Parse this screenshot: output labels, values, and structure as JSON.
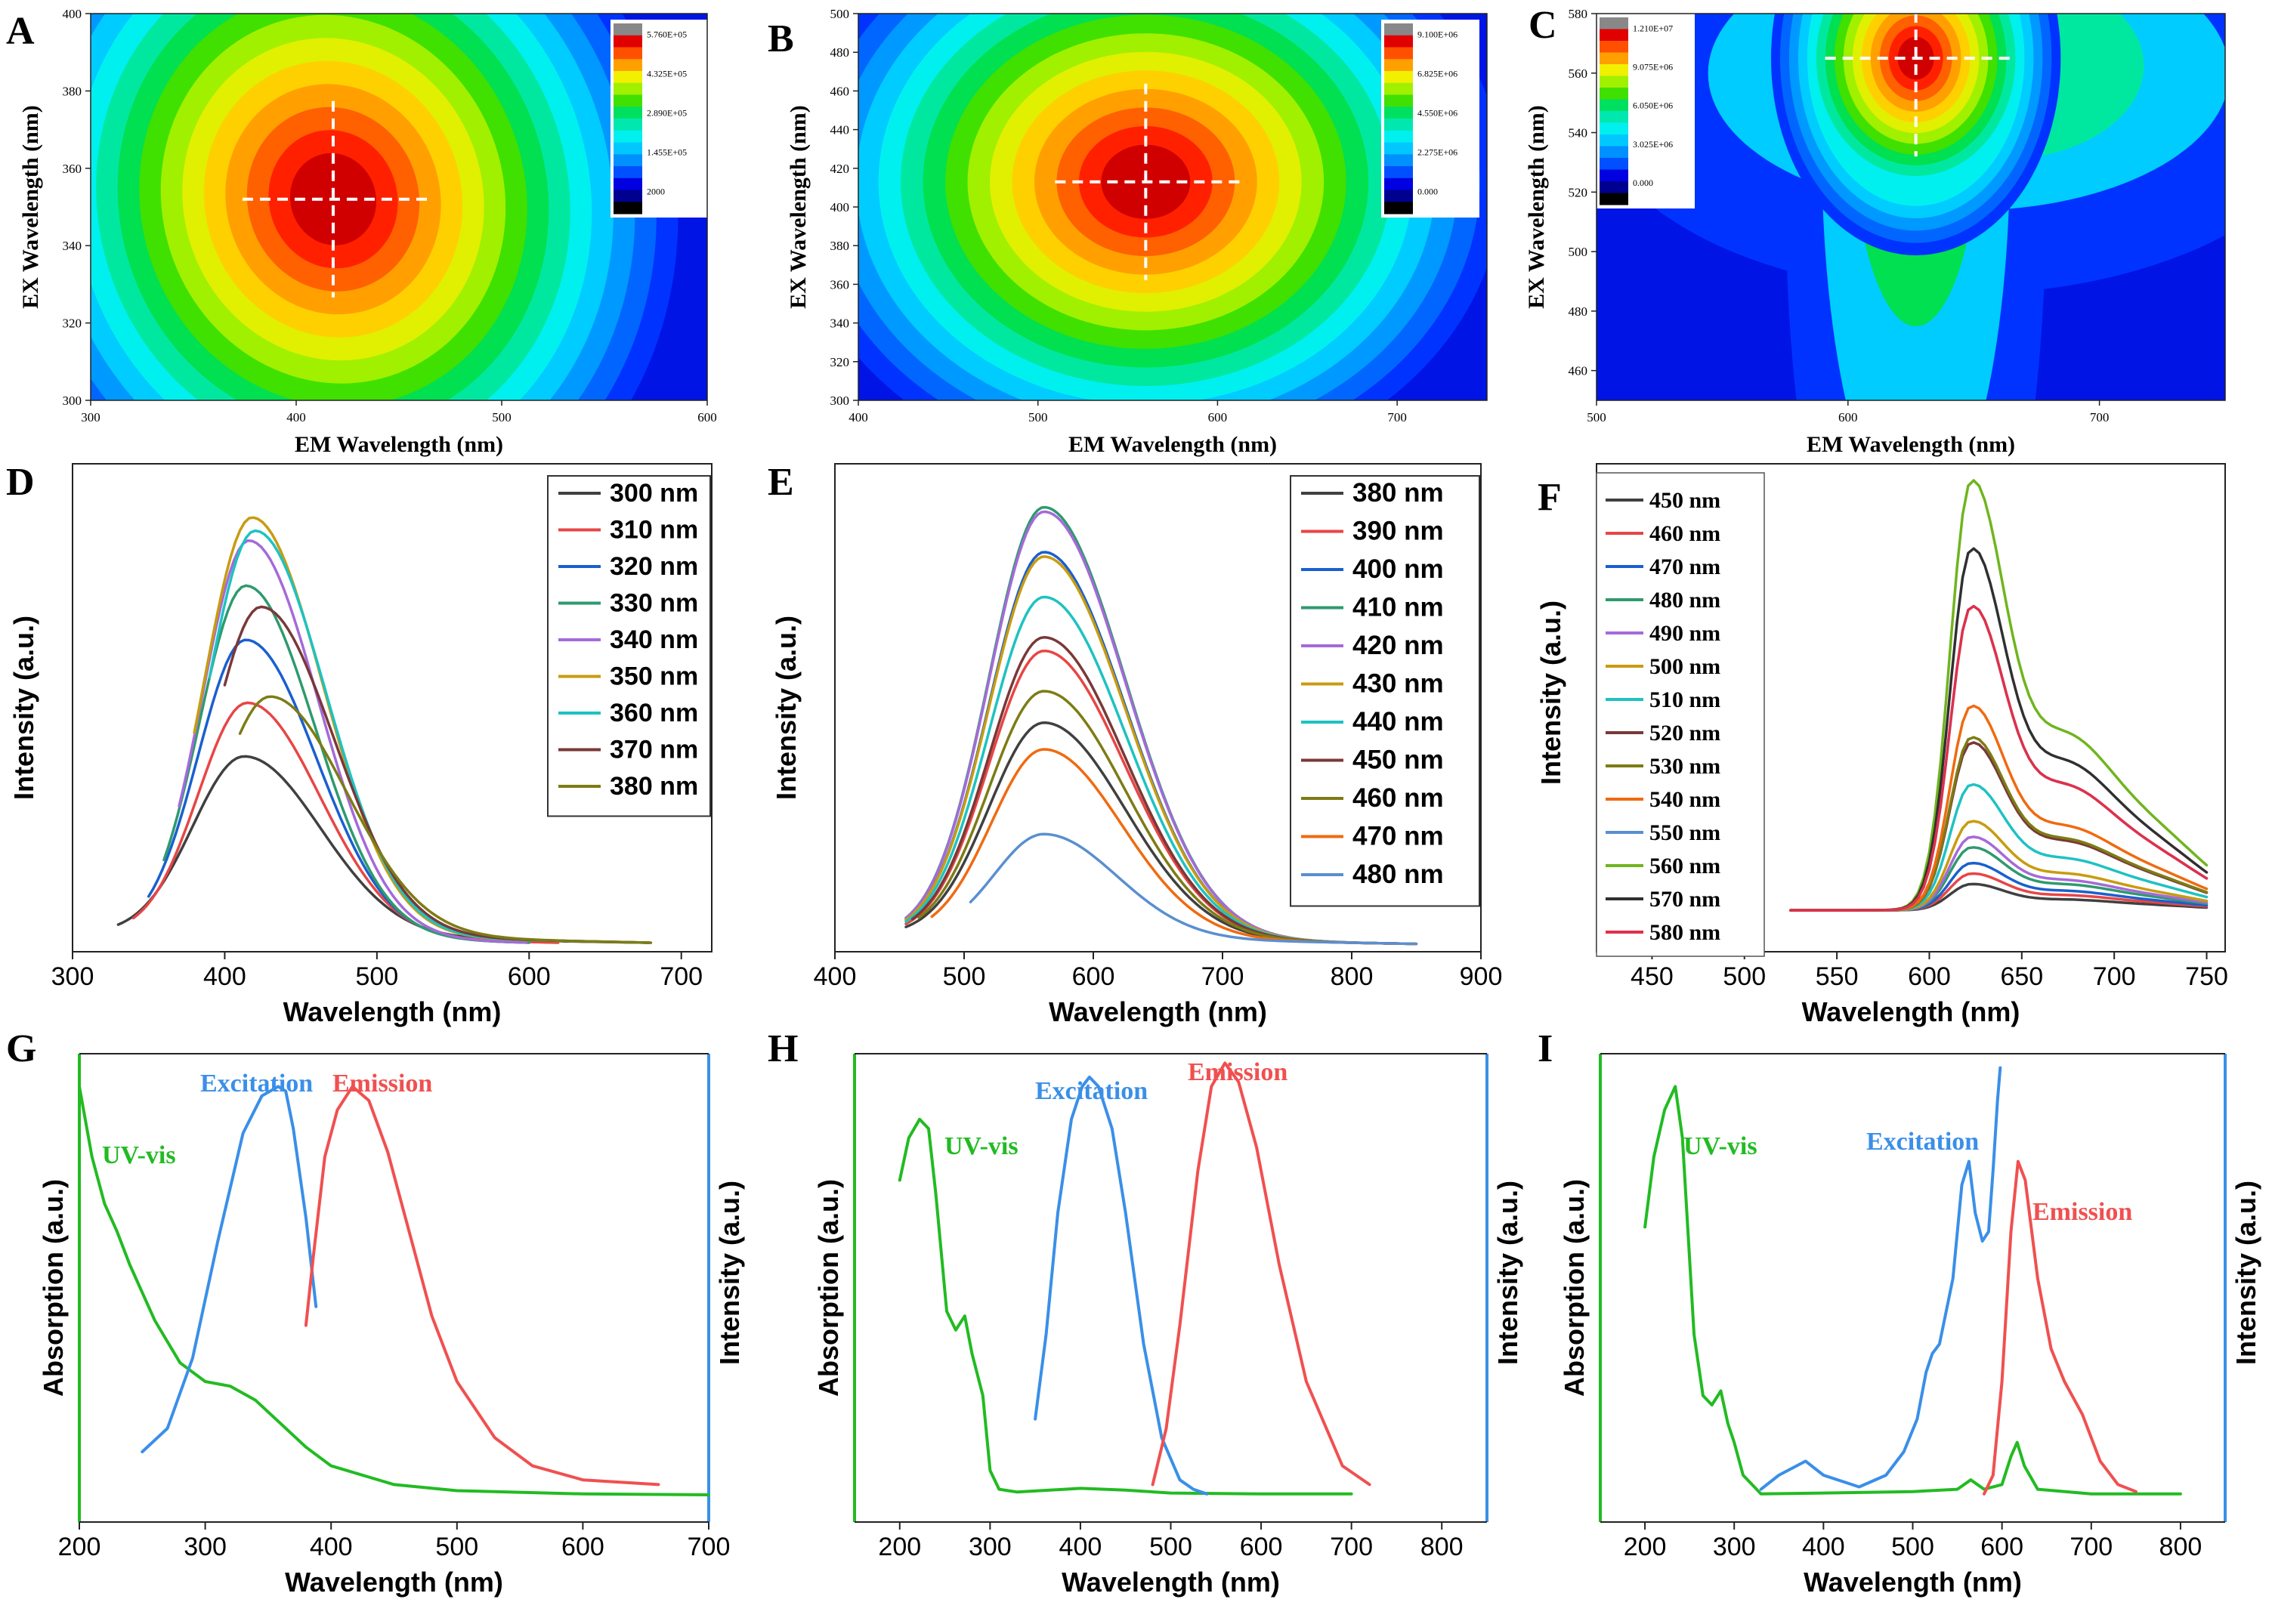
{
  "figure": {
    "panel_labels": [
      "A",
      "B",
      "C",
      "D",
      "E",
      "F",
      "G",
      "H",
      "I"
    ]
  },
  "chart_data": [
    {
      "panel": "A",
      "type": "heatmap",
      "xlabel": "EM Wavelength (nm)",
      "ylabel": "EX Wavelength (nm)",
      "xlim": [
        300,
        600
      ],
      "ylim": [
        300,
        400
      ],
      "xticks": [
        "300",
        "400",
        "500",
        "600"
      ],
      "yticks": [
        "300",
        "320",
        "340",
        "360",
        "380",
        "400"
      ],
      "peak": {
        "em": 418,
        "ex": 352
      },
      "spread": {
        "em": 52,
        "ex": 30
      },
      "colorbar": {
        "labels": [
          "5.760E+05",
          "4.325E+05",
          "2.890E+05",
          "1.455E+05",
          "2000"
        ]
      }
    },
    {
      "panel": "B",
      "type": "heatmap",
      "xlabel": "EM Wavelength (nm)",
      "ylabel": "EX Wavelength (nm)",
      "xlim": [
        400,
        750
      ],
      "ylim": [
        300,
        500
      ],
      "xticks": [
        "400",
        "500",
        "600",
        "700"
      ],
      "yticks": [
        "300",
        "320",
        "340",
        "360",
        "380",
        "400",
        "420",
        "440",
        "460",
        "480",
        "500"
      ],
      "peak": {
        "em": 560,
        "ex": 413
      },
      "spread": {
        "em": 62,
        "ex": 48
      },
      "colorbar": {
        "labels": [
          "9.100E+06",
          "6.825E+06",
          "4.550E+06",
          "2.275E+06",
          "0.000"
        ]
      }
    },
    {
      "panel": "C",
      "type": "heatmap",
      "xlabel": "EM Wavelength (nm)",
      "ylabel": "EX Wavelength (nm)",
      "xlim": [
        500,
        750
      ],
      "ylim": [
        450,
        580
      ],
      "xticks": [
        "500",
        "600",
        "700"
      ],
      "yticks": [
        "460",
        "480",
        "500",
        "520",
        "540",
        "560",
        "580"
      ],
      "peak": {
        "em": 627,
        "ex": 565
      },
      "spread": {
        "em": 18,
        "ex": 18
      },
      "colorbar": {
        "labels": [
          "1.210E+07",
          "9.075E+06",
          "6.050E+06",
          "3.025E+06",
          "0.000"
        ]
      }
    },
    {
      "panel": "D",
      "type": "line",
      "xlabel": "Wavelength (nm)",
      "ylabel": "Intensity (a.u.)",
      "xlim": [
        300,
        720
      ],
      "ylim": [
        0,
        1.0
      ],
      "xticks": [
        "300",
        "400",
        "500",
        "600",
        "700"
      ],
      "series": [
        {
          "name": "300 nm",
          "color": "#404040",
          "start": 330,
          "end": 680,
          "peak": 413,
          "amp": 0.4,
          "width": 40
        },
        {
          "name": "310 nm",
          "color": "#e84545",
          "start": 340,
          "end": 620,
          "peak": 415,
          "amp": 0.52,
          "width": 38
        },
        {
          "name": "320 nm",
          "color": "#1a5fd0",
          "start": 350,
          "end": 600,
          "peak": 414,
          "amp": 0.66,
          "width": 37
        },
        {
          "name": "330 nm",
          "color": "#2e9a6e",
          "start": 360,
          "end": 600,
          "peak": 414,
          "amp": 0.78,
          "width": 36
        },
        {
          "name": "340 nm",
          "color": "#a56ad8",
          "start": 370,
          "end": 600,
          "peak": 416,
          "amp": 0.88,
          "width": 36
        },
        {
          "name": "350 nm",
          "color": "#c89c10",
          "start": 380,
          "end": 680,
          "peak": 418,
          "amp": 0.93,
          "width": 37
        },
        {
          "name": "360 nm",
          "color": "#1ec2c2",
          "start": 390,
          "end": 680,
          "peak": 420,
          "amp": 0.9,
          "width": 37
        },
        {
          "name": "370 nm",
          "color": "#7a3838",
          "start": 400,
          "end": 680,
          "peak": 424,
          "amp": 0.73,
          "width": 38
        },
        {
          "name": "380 nm",
          "color": "#7c7c15",
          "start": 410,
          "end": 680,
          "peak": 430,
          "amp": 0.53,
          "width": 40
        }
      ]
    },
    {
      "panel": "E",
      "type": "line",
      "xlabel": "Wavelength (nm)",
      "ylabel": "Intensity (a.u.)",
      "xlim": [
        400,
        900
      ],
      "ylim": [
        0,
        1.0
      ],
      "xticks": [
        "400",
        "500",
        "600",
        "700",
        "800",
        "900"
      ],
      "series": [
        {
          "name": "380 nm",
          "color": "#404040",
          "start": 455,
          "end": 850,
          "peak": 562,
          "amp": 0.48,
          "width": 50
        },
        {
          "name": "390 nm",
          "color": "#e84545",
          "start": 455,
          "end": 850,
          "peak": 562,
          "amp": 0.64,
          "width": 50
        },
        {
          "name": "400 nm",
          "color": "#1a5fd0",
          "start": 455,
          "end": 850,
          "peak": 562,
          "amp": 0.86,
          "width": 50
        },
        {
          "name": "410 nm",
          "color": "#2e9a6e",
          "start": 455,
          "end": 850,
          "peak": 562,
          "amp": 0.96,
          "width": 50
        },
        {
          "name": "420 nm",
          "color": "#a56ad8",
          "start": 455,
          "end": 850,
          "peak": 562,
          "amp": 0.95,
          "width": 50
        },
        {
          "name": "430 nm",
          "color": "#c89c10",
          "start": 455,
          "end": 850,
          "peak": 562,
          "amp": 0.85,
          "width": 50
        },
        {
          "name": "440 nm",
          "color": "#1ec2c2",
          "start": 455,
          "end": 850,
          "peak": 562,
          "amp": 0.76,
          "width": 50
        },
        {
          "name": "450 nm",
          "color": "#7a3838",
          "start": 460,
          "end": 850,
          "peak": 562,
          "amp": 0.67,
          "width": 50
        },
        {
          "name": "460 nm",
          "color": "#7c7c15",
          "start": 465,
          "end": 850,
          "peak": 562,
          "amp": 0.55,
          "width": 50
        },
        {
          "name": "470 nm",
          "color": "#f06a10",
          "start": 475,
          "end": 850,
          "peak": 562,
          "amp": 0.42,
          "width": 48
        },
        {
          "name": "480 nm",
          "color": "#5a8fd0",
          "start": 505,
          "end": 850,
          "peak": 562,
          "amp": 0.23,
          "width": 45
        }
      ]
    },
    {
      "panel": "F",
      "type": "line",
      "xlabel": "Wavelength (nm)",
      "ylabel": "Intensity (a.u.)",
      "xlim": [
        420,
        760
      ],
      "ylim": [
        0,
        1.0
      ],
      "xticks": [
        "450",
        "500",
        "550",
        "600",
        "650",
        "700",
        "750"
      ],
      "series": [
        {
          "name": "450 nm",
          "color": "#404040",
          "amp": 0.05
        },
        {
          "name": "460 nm",
          "color": "#e84545",
          "amp": 0.07
        },
        {
          "name": "470 nm",
          "color": "#1a5fd0",
          "amp": 0.09
        },
        {
          "name": "480 nm",
          "color": "#2e9a6e",
          "amp": 0.12
        },
        {
          "name": "490 nm",
          "color": "#a56ad8",
          "amp": 0.14
        },
        {
          "name": "500 nm",
          "color": "#c89c10",
          "amp": 0.17
        },
        {
          "name": "510 nm",
          "color": "#1ec2c2",
          "amp": 0.24
        },
        {
          "name": "520 nm",
          "color": "#7a3838",
          "amp": 0.32
        },
        {
          "name": "530 nm",
          "color": "#7c7c15",
          "amp": 0.33
        },
        {
          "name": "540 nm",
          "color": "#f06a10",
          "amp": 0.39
        },
        {
          "name": "550 nm",
          "color": "#5a8fd0",
          "amp": 0.58
        },
        {
          "name": "560 nm",
          "color": "#6fb51e",
          "amp": 0.82
        },
        {
          "name": "570 nm",
          "color": "#303030",
          "amp": 0.69
        },
        {
          "name": "580 nm",
          "color": "#e0304a",
          "amp": 0.58
        }
      ]
    },
    {
      "panel": "G",
      "type": "line",
      "xlabel": "Wavelength (nm)",
      "ylabel_left": "Absorption (a.u.)",
      "ylabel_right": "Intensity (a.u.)",
      "xlim": [
        200,
        700
      ],
      "ylim": [
        0,
        1.0
      ],
      "xticks": [
        "200",
        "300",
        "400",
        "500",
        "600",
        "700"
      ],
      "series": [
        {
          "name": "UV-vis",
          "color": "#22bb22",
          "x": [
            200,
            210,
            220,
            230,
            240,
            260,
            280,
            300,
            320,
            340,
            360,
            380,
            400,
            450,
            500,
            600,
            700
          ],
          "y": [
            0.93,
            0.78,
            0.68,
            0.62,
            0.55,
            0.43,
            0.34,
            0.3,
            0.29,
            0.26,
            0.21,
            0.16,
            0.12,
            0.08,
            0.067,
            0.06,
            0.058
          ]
        },
        {
          "name": "Excitation",
          "color": "#3a8fe8",
          "x": [
            250,
            270,
            290,
            310,
            330,
            345,
            358,
            364,
            370,
            380,
            388
          ],
          "y": [
            0.15,
            0.2,
            0.35,
            0.6,
            0.83,
            0.91,
            0.93,
            0.92,
            0.84,
            0.65,
            0.46
          ]
        },
        {
          "name": "Emission",
          "color": "#f05050",
          "x": [
            380,
            386,
            395,
            405,
            417,
            430,
            445,
            460,
            480,
            500,
            530,
            560,
            600,
            660
          ],
          "y": [
            0.42,
            0.57,
            0.78,
            0.88,
            0.93,
            0.9,
            0.79,
            0.64,
            0.44,
            0.3,
            0.18,
            0.12,
            0.09,
            0.08
          ]
        }
      ]
    },
    {
      "panel": "H",
      "type": "line",
      "xlabel": "Wavelength (nm)",
      "ylabel_left": "Absorption (a.u.)",
      "ylabel_right": "Intensity (a.u.)",
      "xlim": [
        150,
        850
      ],
      "ylim": [
        0,
        1.0
      ],
      "xticks": [
        "200",
        "300",
        "400",
        "500",
        "600",
        "700",
        "800"
      ],
      "series": [
        {
          "name": "UV-vis",
          "color": "#22bb22",
          "x": [
            200,
            210,
            222,
            232,
            240,
            252,
            262,
            272,
            280,
            292,
            300,
            310,
            330,
            400,
            450,
            500,
            600,
            700
          ],
          "y": [
            0.73,
            0.82,
            0.86,
            0.84,
            0.7,
            0.45,
            0.41,
            0.44,
            0.36,
            0.27,
            0.11,
            0.07,
            0.064,
            0.072,
            0.068,
            0.062,
            0.06,
            0.06
          ]
        },
        {
          "name": "Excitation",
          "color": "#3a8fe8",
          "x": [
            350,
            362,
            375,
            390,
            402,
            410,
            420,
            435,
            450,
            470,
            490,
            510,
            525,
            540
          ],
          "y": [
            0.22,
            0.4,
            0.66,
            0.86,
            0.93,
            0.95,
            0.93,
            0.84,
            0.66,
            0.38,
            0.18,
            0.09,
            0.07,
            0.06
          ]
        },
        {
          "name": "Emission",
          "color": "#f05050",
          "x": [
            480,
            495,
            510,
            530,
            545,
            560,
            575,
            595,
            620,
            650,
            690,
            720
          ],
          "y": [
            0.08,
            0.2,
            0.42,
            0.75,
            0.93,
            0.98,
            0.94,
            0.8,
            0.55,
            0.3,
            0.12,
            0.08
          ]
        }
      ]
    },
    {
      "panel": "I",
      "type": "line",
      "xlabel": "Wavelength (nm)",
      "ylabel_left": "Absorption (a.u.)",
      "ylabel_right": "Intensity (a.u.)",
      "xlim": [
        150,
        850
      ],
      "ylim": [
        0,
        1.0
      ],
      "xticks": [
        "200",
        "300",
        "400",
        "500",
        "600",
        "700",
        "800"
      ],
      "series": [
        {
          "name": "UV-vis",
          "color": "#22bb22",
          "x": [
            200,
            210,
            222,
            234,
            242,
            255,
            265,
            275,
            285,
            293,
            300,
            310,
            330,
            400,
            500,
            550,
            565,
            580,
            600,
            610,
            617,
            625,
            640,
            700,
            800
          ],
          "y": [
            0.63,
            0.78,
            0.88,
            0.93,
            0.82,
            0.4,
            0.27,
            0.25,
            0.28,
            0.21,
            0.17,
            0.1,
            0.06,
            0.062,
            0.065,
            0.07,
            0.09,
            0.07,
            0.08,
            0.14,
            0.17,
            0.12,
            0.07,
            0.06,
            0.06
          ]
        },
        {
          "name": "Excitation",
          "color": "#3a8fe8",
          "x": [
            330,
            350,
            380,
            400,
            440,
            470,
            490,
            505,
            515,
            522,
            530,
            545,
            555,
            563,
            570,
            578,
            585,
            590,
            595,
            598
          ],
          "y": [
            0.07,
            0.1,
            0.13,
            0.1,
            0.075,
            0.1,
            0.15,
            0.22,
            0.32,
            0.36,
            0.38,
            0.52,
            0.72,
            0.77,
            0.66,
            0.6,
            0.62,
            0.75,
            0.9,
            0.97
          ]
        },
        {
          "name": "Emission",
          "color": "#f05050",
          "x": [
            580,
            590,
            600,
            610,
            618,
            626,
            640,
            655,
            670,
            690,
            710,
            730,
            750
          ],
          "y": [
            0.06,
            0.1,
            0.3,
            0.62,
            0.77,
            0.73,
            0.52,
            0.37,
            0.3,
            0.23,
            0.13,
            0.08,
            0.065
          ]
        }
      ]
    }
  ]
}
